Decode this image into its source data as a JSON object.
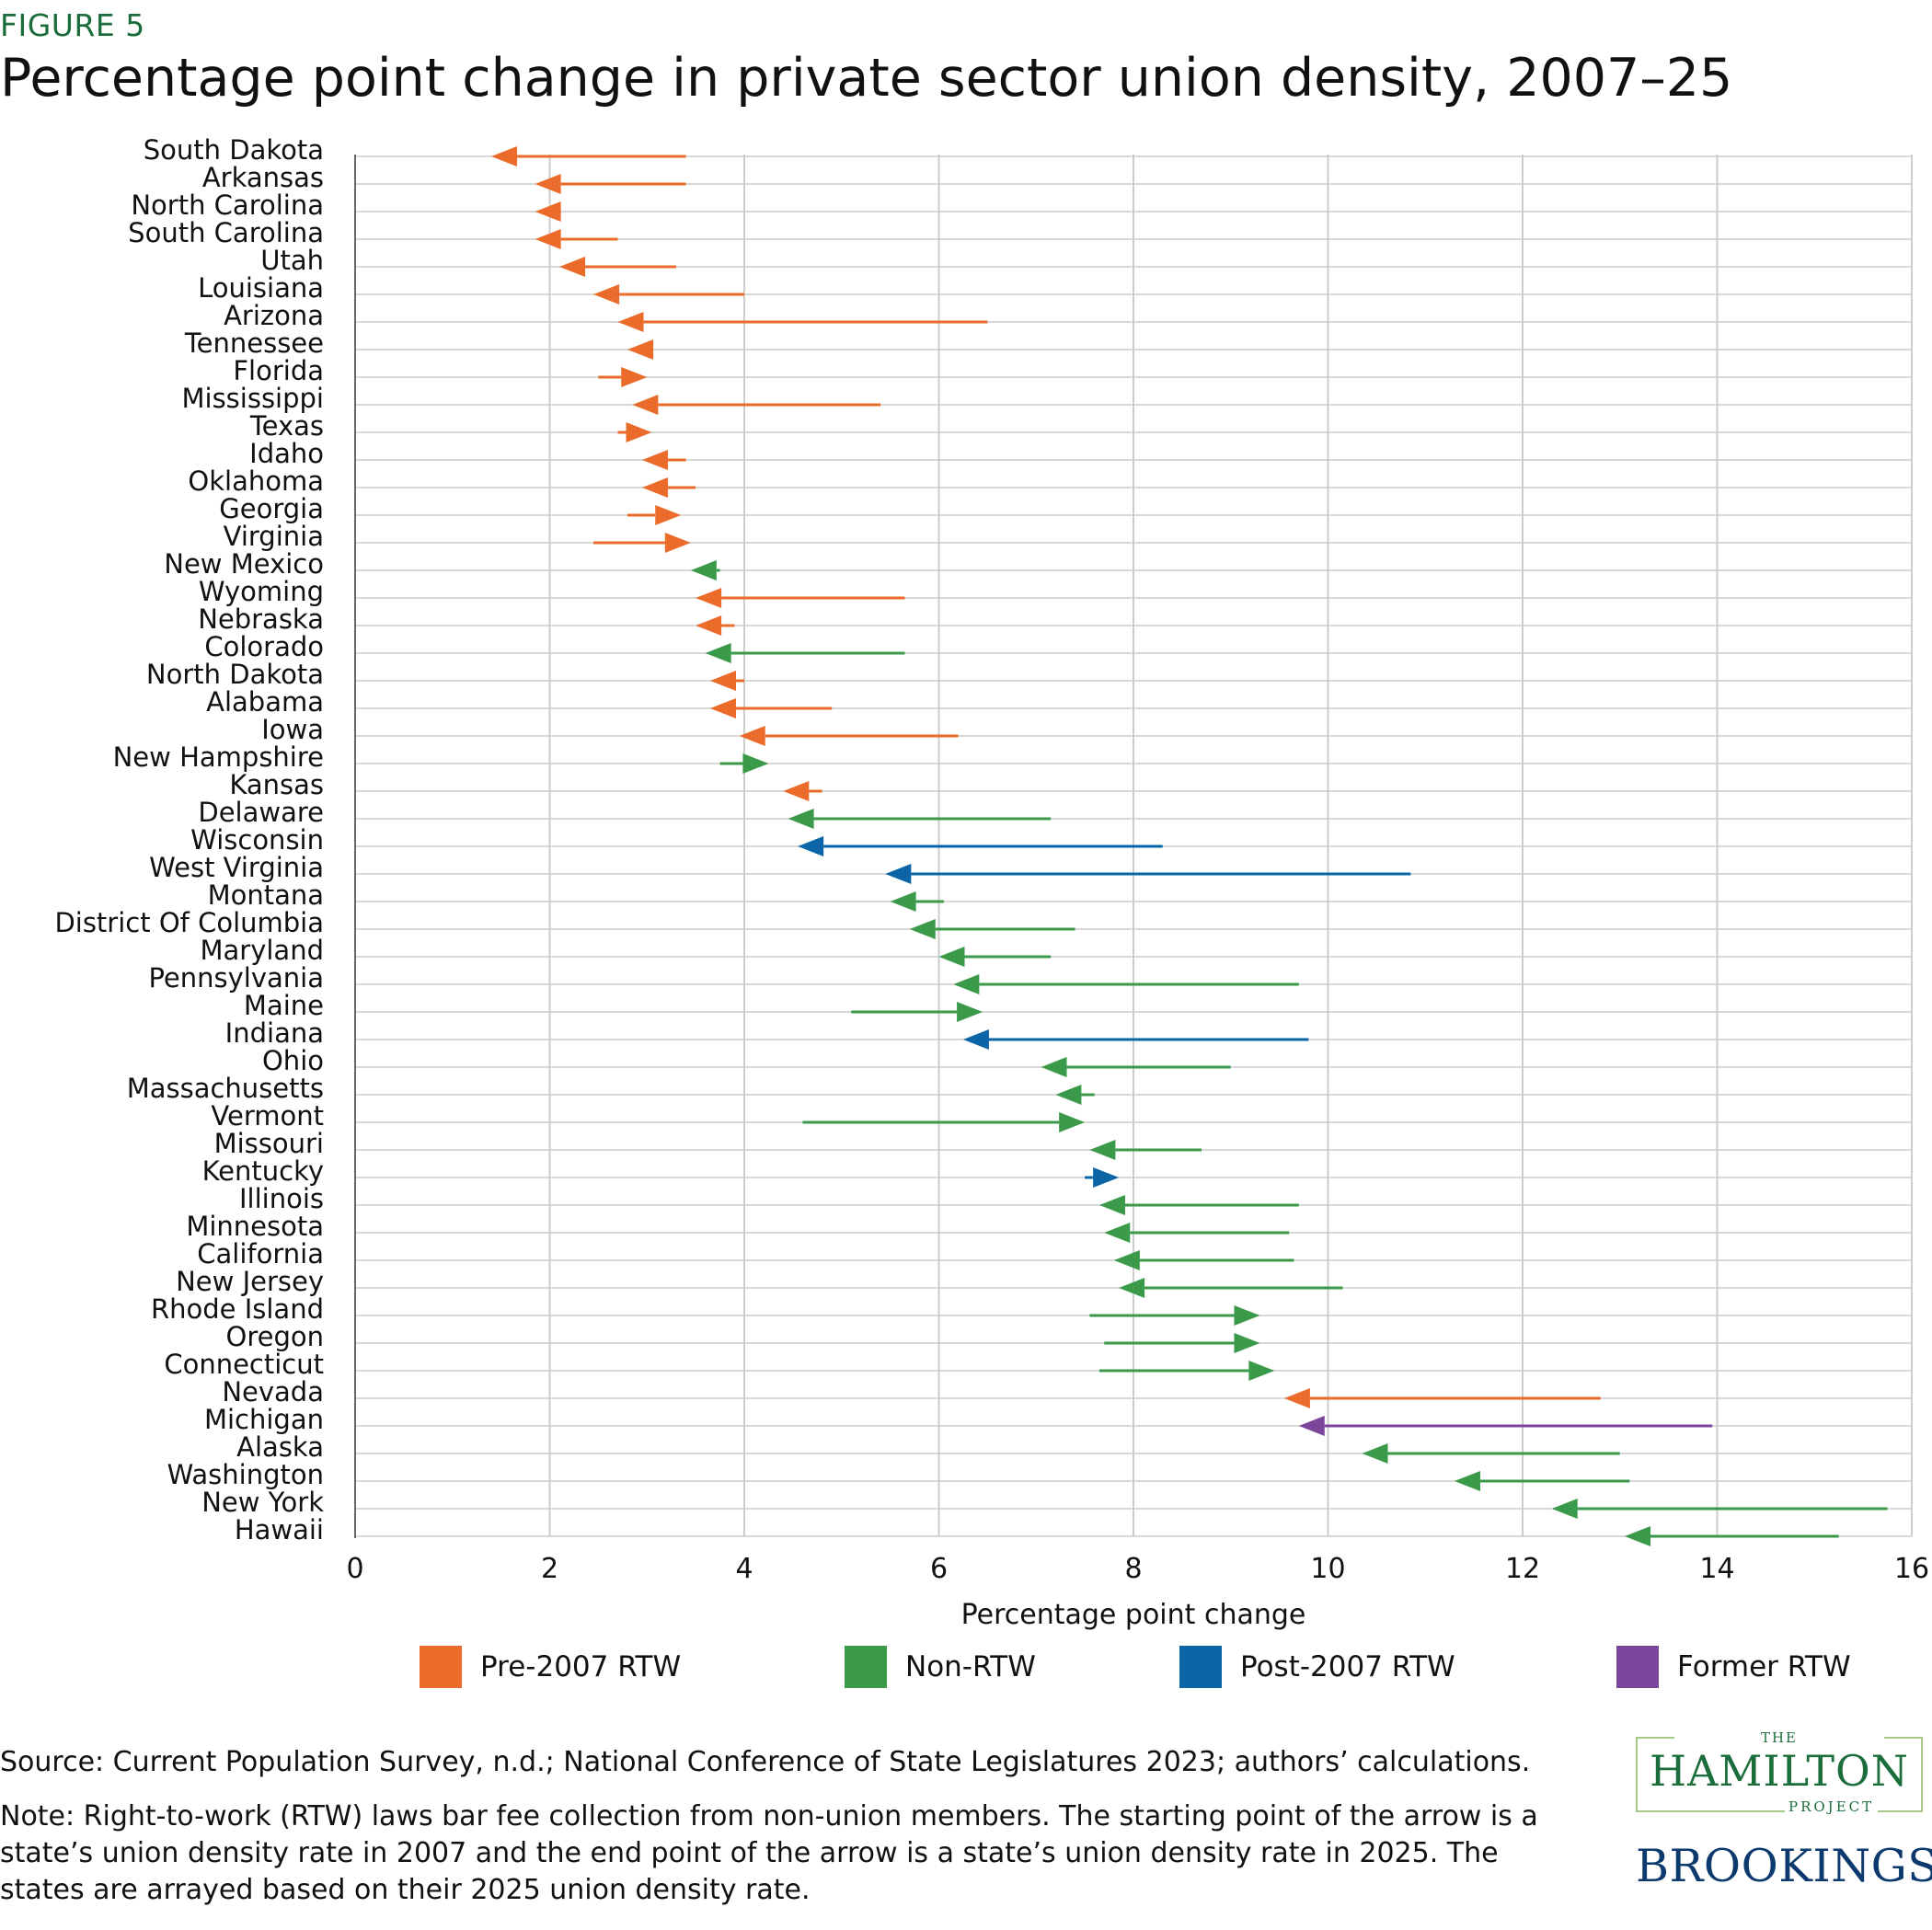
{
  "header": {
    "figure_label": "FIGURE 5",
    "title": "Percentage point change in private sector union density, 2007–25"
  },
  "colors": {
    "Pre-2007 RTW": "#ea6b2a",
    "Non-RTW": "#3a9a4a",
    "Post-2007 RTW": "#0a64a6",
    "Former RTW": "#7a459a",
    "grid": "#cccccc",
    "logo_green": "#1b6e3b",
    "logo_blue": "#0d3a6e"
  },
  "legend": {
    "items": [
      {
        "label": "Pre-2007 RTW"
      },
      {
        "label": "Non-RTW"
      },
      {
        "label": "Post-2007 RTW"
      },
      {
        "label": "Former RTW"
      }
    ]
  },
  "chart_data": {
    "type": "arrow",
    "xlabel": "Percentage point change",
    "ylabel": "",
    "xlim": [
      0,
      16
    ],
    "xticks": [
      0,
      2,
      4,
      6,
      8,
      10,
      12,
      14,
      16
    ],
    "grid": true,
    "legend_position": "bottom",
    "rows": [
      {
        "state": "South Dakota",
        "start": 3.4,
        "end": 1.4,
        "group": "Pre-2007 RTW"
      },
      {
        "state": "Arkansas",
        "start": 3.4,
        "end": 1.85,
        "group": "Pre-2007 RTW"
      },
      {
        "state": "North Carolina",
        "start": 2.1,
        "end": 1.85,
        "group": "Pre-2007 RTW"
      },
      {
        "state": "South Carolina",
        "start": 2.7,
        "end": 1.85,
        "group": "Pre-2007 RTW"
      },
      {
        "state": "Utah",
        "start": 3.3,
        "end": 2.1,
        "group": "Pre-2007 RTW"
      },
      {
        "state": "Louisiana",
        "start": 4.0,
        "end": 2.45,
        "group": "Pre-2007 RTW"
      },
      {
        "state": "Arizona",
        "start": 6.5,
        "end": 2.7,
        "group": "Pre-2007 RTW"
      },
      {
        "state": "Tennessee",
        "start": 3.05,
        "end": 2.8,
        "group": "Pre-2007 RTW"
      },
      {
        "state": "Florida",
        "start": 2.5,
        "end": 3.0,
        "group": "Pre-2007 RTW"
      },
      {
        "state": "Mississippi",
        "start": 5.4,
        "end": 2.85,
        "group": "Pre-2007 RTW"
      },
      {
        "state": "Texas",
        "start": 2.7,
        "end": 3.05,
        "group": "Pre-2007 RTW"
      },
      {
        "state": "Idaho",
        "start": 3.4,
        "end": 2.95,
        "group": "Pre-2007 RTW"
      },
      {
        "state": "Oklahoma",
        "start": 3.5,
        "end": 2.95,
        "group": "Pre-2007 RTW"
      },
      {
        "state": "Georgia",
        "start": 2.8,
        "end": 3.35,
        "group": "Pre-2007 RTW"
      },
      {
        "state": "Virginia",
        "start": 2.45,
        "end": 3.45,
        "group": "Pre-2007 RTW"
      },
      {
        "state": "New Mexico",
        "start": 3.75,
        "end": 3.45,
        "group": "Non-RTW"
      },
      {
        "state": "Wyoming",
        "start": 5.65,
        "end": 3.5,
        "group": "Pre-2007 RTW"
      },
      {
        "state": "Nebraska",
        "start": 3.9,
        "end": 3.5,
        "group": "Pre-2007 RTW"
      },
      {
        "state": "Colorado",
        "start": 5.65,
        "end": 3.6,
        "group": "Non-RTW"
      },
      {
        "state": "North Dakota",
        "start": 4.0,
        "end": 3.65,
        "group": "Pre-2007 RTW"
      },
      {
        "state": "Alabama",
        "start": 4.9,
        "end": 3.65,
        "group": "Pre-2007 RTW"
      },
      {
        "state": "Iowa",
        "start": 6.2,
        "end": 3.95,
        "group": "Pre-2007 RTW"
      },
      {
        "state": "New Hampshire",
        "start": 3.75,
        "end": 4.25,
        "group": "Non-RTW"
      },
      {
        "state": "Kansas",
        "start": 4.8,
        "end": 4.4,
        "group": "Pre-2007 RTW"
      },
      {
        "state": "Delaware",
        "start": 7.15,
        "end": 4.45,
        "group": "Non-RTW"
      },
      {
        "state": "Wisconsin",
        "start": 8.3,
        "end": 4.55,
        "group": "Post-2007 RTW"
      },
      {
        "state": "West Virginia",
        "start": 10.85,
        "end": 5.45,
        "group": "Post-2007 RTW"
      },
      {
        "state": "Montana",
        "start": 6.05,
        "end": 5.5,
        "group": "Non-RTW"
      },
      {
        "state": "District Of Columbia",
        "start": 7.4,
        "end": 5.7,
        "group": "Non-RTW"
      },
      {
        "state": "Maryland",
        "start": 7.15,
        "end": 6.0,
        "group": "Non-RTW"
      },
      {
        "state": "Pennsylvania",
        "start": 9.7,
        "end": 6.15,
        "group": "Non-RTW"
      },
      {
        "state": "Maine",
        "start": 5.1,
        "end": 6.45,
        "group": "Non-RTW"
      },
      {
        "state": "Indiana",
        "start": 9.8,
        "end": 6.25,
        "group": "Post-2007 RTW"
      },
      {
        "state": "Ohio",
        "start": 9.0,
        "end": 7.05,
        "group": "Non-RTW"
      },
      {
        "state": "Massachusetts",
        "start": 7.6,
        "end": 7.2,
        "group": "Non-RTW"
      },
      {
        "state": "Vermont",
        "start": 4.6,
        "end": 7.5,
        "group": "Non-RTW"
      },
      {
        "state": "Missouri",
        "start": 8.7,
        "end": 7.55,
        "group": "Non-RTW"
      },
      {
        "state": "Kentucky",
        "start": 7.5,
        "end": 7.85,
        "group": "Post-2007 RTW"
      },
      {
        "state": "Illinois",
        "start": 9.7,
        "end": 7.65,
        "group": "Non-RTW"
      },
      {
        "state": "Minnesota",
        "start": 9.6,
        "end": 7.7,
        "group": "Non-RTW"
      },
      {
        "state": "California",
        "start": 9.65,
        "end": 7.8,
        "group": "Non-RTW"
      },
      {
        "state": "New Jersey",
        "start": 10.15,
        "end": 7.85,
        "group": "Non-RTW"
      },
      {
        "state": "Rhode Island",
        "start": 7.55,
        "end": 9.3,
        "group": "Non-RTW"
      },
      {
        "state": "Oregon",
        "start": 7.7,
        "end": 9.3,
        "group": "Non-RTW"
      },
      {
        "state": "Connecticut",
        "start": 7.65,
        "end": 9.45,
        "group": "Non-RTW"
      },
      {
        "state": "Nevada",
        "start": 12.8,
        "end": 9.55,
        "group": "Pre-2007 RTW"
      },
      {
        "state": "Michigan",
        "start": 13.95,
        "end": 9.7,
        "group": "Former RTW"
      },
      {
        "state": "Alaska",
        "start": 13.0,
        "end": 10.35,
        "group": "Non-RTW"
      },
      {
        "state": "Washington",
        "start": 13.1,
        "end": 11.3,
        "group": "Non-RTW"
      },
      {
        "state": "New York",
        "start": 15.75,
        "end": 12.3,
        "group": "Non-RTW"
      },
      {
        "state": "Hawaii",
        "start": 15.25,
        "end": 13.05,
        "group": "Non-RTW"
      }
    ]
  },
  "footer": {
    "source": "Source: Current Population Survey, n.d.; National Conference of State Legislatures 2023; authors’ calculations.",
    "note": "Note: Right-to-work (RTW) laws bar fee collection from non-union members. The starting point of the arrow is a state’s union density rate in 2007 and the end point of the arrow is a state’s union density rate in 2025. The states are arrayed based on their 2025 union density rate."
  },
  "logos": {
    "hamilton_the": "THE",
    "hamilton_name": "HAMILTON",
    "hamilton_project": "PROJECT",
    "brookings": "BROOKINGS"
  }
}
